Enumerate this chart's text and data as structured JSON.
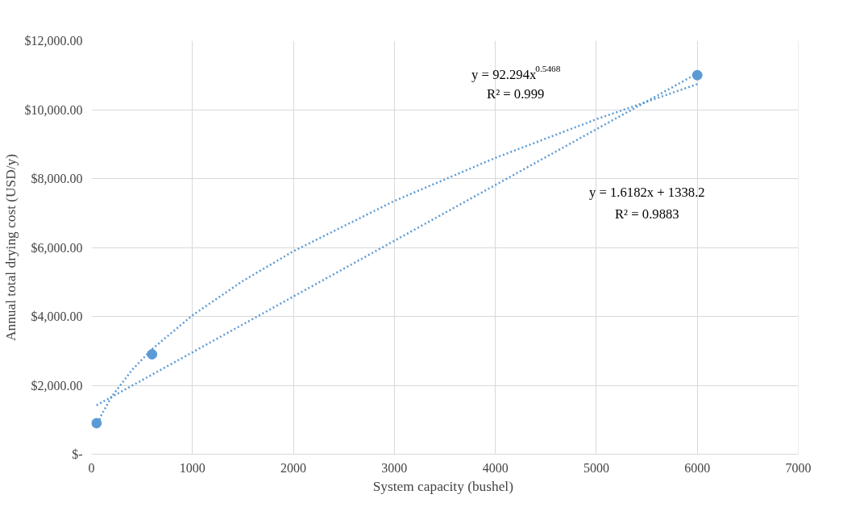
{
  "chart_data": {
    "type": "scatter",
    "xlabel": "System capacity  (bushel)",
    "ylabel": "Annual total drying cost (USD/y)",
    "xlim": [
      0,
      7000
    ],
    "xticks": [
      0,
      1000,
      2000,
      3000,
      4000,
      5000,
      6000,
      7000
    ],
    "ylim": [
      0,
      12000
    ],
    "yticks": [
      {
        "value": 0,
        "label": "$-"
      },
      {
        "value": 2000,
        "label": "$2,000.00"
      },
      {
        "value": 4000,
        "label": "$4,000.00"
      },
      {
        "value": 6000,
        "label": "$6,000.00"
      },
      {
        "value": 8000,
        "label": "$8,000.00"
      },
      {
        "value": 10000,
        "label": "$10,000.00"
      },
      {
        "value": 12000,
        "label": "$12,000.00"
      }
    ],
    "grid": true,
    "series": [
      {
        "color": "#5b9bd5",
        "marker": "circle",
        "x": [
          50,
          600,
          6000
        ],
        "values": [
          900,
          2900,
          11000
        ]
      },
      {
        "type": "line",
        "line_style": "dotted",
        "marker": "none",
        "color": "#5b9bd5",
        "x": [
          50,
          100,
          200,
          400,
          600,
          1000,
          1500,
          2000,
          3000,
          4000,
          5000,
          6000
        ],
        "values": [
          780,
          1150,
          1670,
          2440,
          3050,
          4030,
          5030,
          5890,
          7350,
          8600,
          9720,
          10740
        ]
      },
      {
        "type": "line",
        "line_style": "dotted",
        "marker": "none",
        "color": "#5b9bd5",
        "x": [
          50,
          6000
        ],
        "values": [
          1420,
          11050
        ]
      }
    ],
    "annotations": [
      "y = 92.294x$^{0.5468}$",
      "R² = 0.999",
      "y = 1.6182x + 1338.2",
      "R² = 0.9883"
    ]
  }
}
